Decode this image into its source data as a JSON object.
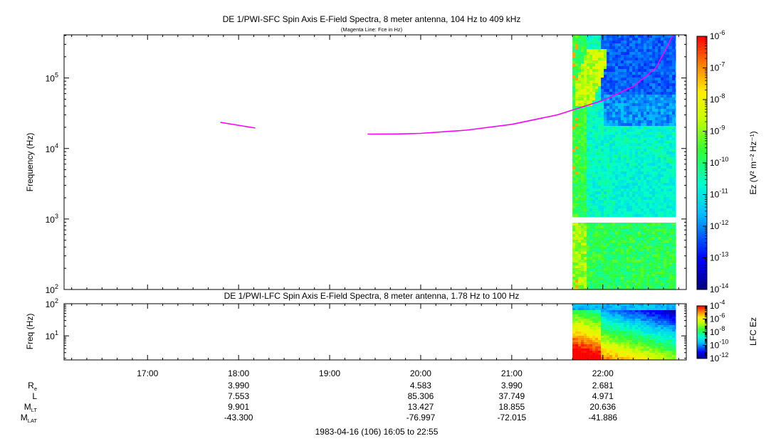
{
  "chart_data": [
    {
      "type": "heatmap",
      "title": "DE 1/PWI-SFC  Spin Axis E-Field Spectra, 8 meter antenna, 104 Hz to 409 kHz",
      "subtitle": "(Magenta Line: Fce in Hz)",
      "ylabel": "Frequency (Hz)",
      "yscale": "log",
      "ylim": [
        100,
        409000
      ],
      "yticks": [
        {
          "v": 100,
          "e": "2"
        },
        {
          "v": 1000,
          "e": "3"
        },
        {
          "v": 10000,
          "e": "4"
        },
        {
          "v": 100000,
          "e": "5"
        }
      ],
      "xlim": [
        "16:05",
        "22:55"
      ],
      "data_start": "21:40",
      "data_end": "22:48",
      "gap_hz": [
        900,
        1050
      ],
      "magenta_line": {
        "name": "Fce",
        "color": "#ff00ff",
        "segments": [
          [
            [
              "17:48",
              23500
            ],
            [
              "18:11",
              19500
            ]
          ],
          [
            [
              "19:25",
              16000
            ],
            [
              "19:45",
              16100
            ],
            [
              "20:00",
              16400
            ],
            [
              "20:30",
              18200
            ],
            [
              "21:00",
              22000
            ],
            [
              "21:30",
              30000
            ],
            [
              "22:00",
              48000
            ],
            [
              "22:20",
              76000
            ],
            [
              "22:35",
              140000
            ],
            [
              "22:44",
              330000
            ],
            [
              "22:46",
              409000
            ]
          ]
        ]
      },
      "colorbar": {
        "label": "Ez (V² m⁻² Hz⁻¹)",
        "scale": "log",
        "range": [
          1e-14,
          1e-06
        ],
        "ticks": [
          {
            "m": "10",
            "e": "-6"
          },
          {
            "m": "10",
            "e": "-7"
          },
          {
            "m": "10",
            "e": "-8"
          },
          {
            "m": "10",
            "e": "-9"
          },
          {
            "m": "10",
            "e": "-10"
          },
          {
            "m": "10",
            "e": "-11"
          },
          {
            "m": "10",
            "e": "-12"
          },
          {
            "m": "10",
            "e": "-13"
          },
          {
            "m": "10",
            "e": "-14"
          }
        ]
      }
    },
    {
      "type": "heatmap",
      "title": "DE 1/PWI-LFC  Spin Axis E-Field Spectra, 8 meter antenna, 1.78 Hz to 100 Hz",
      "ylabel": "Freq (Hz)",
      "yscale": "log",
      "ylim": [
        1.78,
        100
      ],
      "yticks": [
        {
          "v": 10,
          "e": "1"
        },
        {
          "v": 100,
          "e": "2"
        }
      ],
      "xlim": [
        "16:05",
        "22:55"
      ],
      "data_start": "21:40",
      "data_end": "22:48",
      "colorbar": {
        "label": "LFC Ez",
        "scale": "log",
        "range": [
          1e-12,
          0.0001
        ],
        "ticks": [
          {
            "m": "10",
            "e": "-4"
          },
          {
            "m": "10",
            "e": "-6"
          },
          {
            "m": "10",
            "e": "-8"
          },
          {
            "m": "10",
            "e": "-10"
          },
          {
            "m": "10",
            "e": "-12"
          }
        ]
      }
    }
  ],
  "time_axis": {
    "ticks": [
      "17:00",
      "18:00",
      "19:00",
      "20:00",
      "21:00",
      "22:00"
    ]
  },
  "ephemeris": {
    "rows": [
      {
        "label": "R",
        "sub": "e",
        "values": [
          "",
          "3.990",
          "",
          "4.583",
          "3.990",
          "2.681"
        ]
      },
      {
        "label": "L",
        "sub": "",
        "values": [
          "",
          "7.553",
          "",
          "85.306",
          "37.749",
          "4.971"
        ]
      },
      {
        "label": "M",
        "sub": "LT",
        "values": [
          "",
          "9.901",
          "",
          "13.427",
          "18.855",
          "20.636"
        ]
      },
      {
        "label": "M",
        "sub": "LAT",
        "values": [
          "",
          "-43.300",
          "",
          "-76.997",
          "-72.015",
          "-41.886"
        ]
      }
    ]
  },
  "footer": "1983-04-16 (106) 16:05 to 22:55"
}
